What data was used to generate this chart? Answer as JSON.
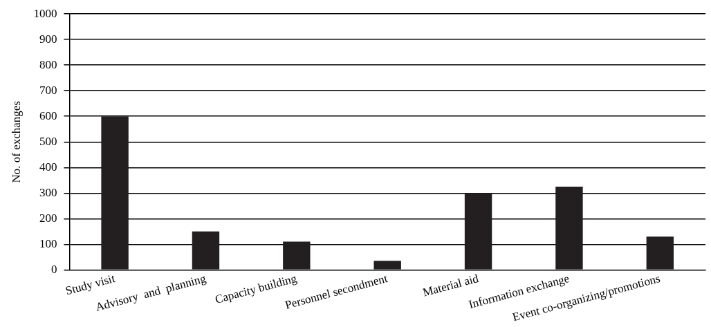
{
  "chart_data": {
    "type": "bar",
    "ylabel": "No. of exchanges",
    "categories": [
      "Study visit",
      "Advisory  and  planning",
      "Capacity building",
      "Personnel secondment",
      "Material aid",
      "Information exchange",
      "Event co-organizing/promotions"
    ],
    "values": [
      600,
      150,
      110,
      35,
      300,
      325,
      130
    ],
    "color": "#231f20",
    "ylim": [
      0,
      1000
    ],
    "yticks": [
      0,
      100,
      200,
      300,
      400,
      500,
      600,
      700,
      800,
      900,
      1000
    ],
    "grid": "y"
  }
}
